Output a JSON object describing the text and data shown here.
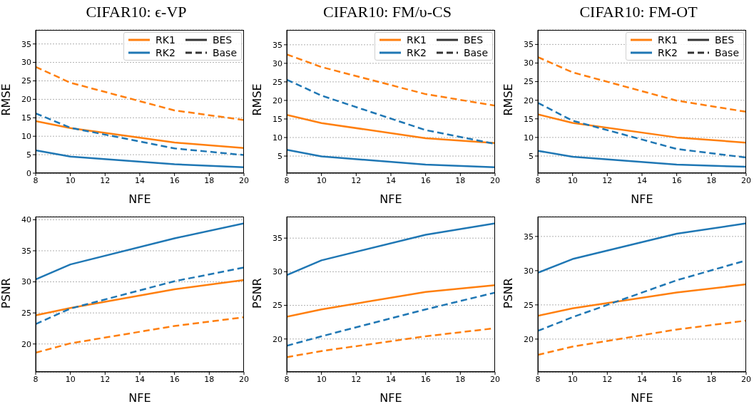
{
  "chart_data": [
    {
      "type": "line",
      "title": "CIFAR10: ϵ-VP",
      "xlabel": "NFE",
      "ylabel": "RMSE",
      "x": [
        8,
        10,
        16,
        20
      ],
      "xlim": [
        8,
        20
      ],
      "xticks": [
        8,
        10,
        12,
        14,
        16,
        18,
        20
      ],
      "ylim": [
        0,
        38.8
      ],
      "yticks": [
        0,
        5,
        10,
        15,
        20,
        25,
        30,
        35
      ],
      "grid": "y",
      "legend": "top right",
      "series": [
        {
          "name": "RK1",
          "color": "#ff7f0e",
          "line_style": "solid",
          "values": [
            14.1,
            12.2,
            8.3,
            6.8
          ]
        },
        {
          "name": "RK2",
          "color": "#1f77b4",
          "line_style": "solid",
          "values": [
            6.2,
            4.5,
            2.4,
            1.6
          ]
        },
        {
          "color": "#ff7f0e",
          "line_style": "dashed",
          "values": [
            28.8,
            24.5,
            17.0,
            14.4
          ]
        },
        {
          "color": "#1f77b4",
          "line_style": "dashed",
          "values": [
            16.2,
            12.3,
            6.7,
            4.9
          ]
        },
        {
          "name": "BES",
          "color": "#333333",
          "line_style": "solid",
          "values": [
            null,
            null,
            null,
            null
          ]
        },
        {
          "name": "Base",
          "color": "#333333",
          "line_style": "dashed",
          "values": [
            null,
            null,
            null,
            null
          ]
        }
      ]
    },
    {
      "type": "line",
      "title": "CIFAR10: FM/υ-CS",
      "xlabel": "NFE",
      "ylabel": "RMSE",
      "x": [
        8,
        10,
        16,
        20
      ],
      "xlim": [
        8,
        20
      ],
      "xticks": [
        8,
        10,
        12,
        14,
        16,
        18,
        20
      ],
      "ylim": [
        0.4,
        39
      ],
      "yticks": [
        5,
        10,
        15,
        20,
        25,
        30,
        35
      ],
      "grid": "y",
      "legend": "top right",
      "series": [
        {
          "name": "RK1",
          "color": "#ff7f0e",
          "line_style": "solid",
          "values": [
            16.1,
            13.9,
            9.8,
            8.5
          ]
        },
        {
          "name": "RK2",
          "color": "#1f77b4",
          "line_style": "solid",
          "values": [
            6.7,
            4.9,
            2.7,
            2.0
          ]
        },
        {
          "color": "#ff7f0e",
          "line_style": "dashed",
          "values": [
            32.4,
            29.0,
            21.7,
            18.6
          ]
        },
        {
          "color": "#1f77b4",
          "line_style": "dashed",
          "values": [
            25.6,
            21.3,
            12.0,
            8.3
          ]
        },
        {
          "name": "BES",
          "color": "#333333",
          "line_style": "solid",
          "values": [
            null,
            null,
            null,
            null
          ]
        },
        {
          "name": "Base",
          "color": "#333333",
          "line_style": "dashed",
          "values": [
            null,
            null,
            null,
            null
          ]
        }
      ]
    },
    {
      "type": "line",
      "title": "CIFAR10: FM-OT",
      "xlabel": "NFE",
      "ylabel": "RMSE",
      "x": [
        8,
        10,
        16,
        20
      ],
      "xlim": [
        8,
        20
      ],
      "xticks": [
        8,
        10,
        12,
        14,
        16,
        18,
        20
      ],
      "ylim": [
        0.4,
        38.9
      ],
      "yticks": [
        5,
        10,
        15,
        20,
        25,
        30,
        35
      ],
      "grid": "y",
      "legend": "top right",
      "series": [
        {
          "name": "RK1",
          "color": "#ff7f0e",
          "line_style": "solid",
          "values": [
            16.2,
            13.9,
            10.0,
            8.6
          ]
        },
        {
          "name": "RK2",
          "color": "#1f77b4",
          "line_style": "solid",
          "values": [
            6.4,
            4.8,
            2.7,
            2.1
          ]
        },
        {
          "color": "#ff7f0e",
          "line_style": "dashed",
          "values": [
            31.6,
            27.5,
            19.9,
            16.9
          ]
        },
        {
          "color": "#1f77b4",
          "line_style": "dashed",
          "values": [
            19.3,
            14.5,
            6.9,
            4.6
          ]
        },
        {
          "name": "BES",
          "color": "#333333",
          "line_style": "solid",
          "values": [
            null,
            null,
            null,
            null
          ]
        },
        {
          "name": "Base",
          "color": "#333333",
          "line_style": "dashed",
          "values": [
            null,
            null,
            null,
            null
          ]
        }
      ]
    },
    {
      "type": "line",
      "xlabel": "NFE",
      "ylabel": "PSNR",
      "x": [
        8,
        10,
        16,
        20
      ],
      "xlim": [
        8,
        20
      ],
      "xticks": [
        8,
        10,
        12,
        14,
        16,
        18,
        20
      ],
      "ylim": [
        15.5,
        40.5
      ],
      "yticks": [
        20,
        25,
        30,
        35,
        40
      ],
      "grid": "y",
      "series": [
        {
          "color": "#ff7f0e",
          "line_style": "solid",
          "values": [
            24.6,
            25.8,
            28.8,
            30.3
          ]
        },
        {
          "color": "#1f77b4",
          "line_style": "solid",
          "values": [
            30.4,
            32.8,
            37.0,
            39.4
          ]
        },
        {
          "color": "#ff7f0e",
          "line_style": "dashed",
          "values": [
            18.6,
            20.1,
            22.9,
            24.3
          ]
        },
        {
          "color": "#1f77b4",
          "line_style": "dashed",
          "values": [
            23.2,
            25.7,
            30.1,
            32.3
          ]
        }
      ]
    },
    {
      "type": "line",
      "xlabel": "NFE",
      "ylabel": "PSNR",
      "x": [
        8,
        10,
        16,
        20
      ],
      "xlim": [
        8,
        20
      ],
      "xticks": [
        8,
        10,
        12,
        14,
        16,
        18,
        20
      ],
      "ylim": [
        15.1,
        38.2
      ],
      "yticks": [
        20,
        25,
        30,
        35
      ],
      "grid": "y",
      "series": [
        {
          "color": "#ff7f0e",
          "line_style": "solid",
          "values": [
            23.3,
            24.4,
            27.0,
            28.0
          ]
        },
        {
          "color": "#1f77b4",
          "line_style": "solid",
          "values": [
            29.5,
            31.7,
            35.5,
            37.2
          ]
        },
        {
          "color": "#ff7f0e",
          "line_style": "dashed",
          "values": [
            17.3,
            18.2,
            20.4,
            21.6
          ]
        },
        {
          "color": "#1f77b4",
          "line_style": "dashed",
          "values": [
            19.0,
            20.4,
            24.4,
            26.9
          ]
        }
      ]
    },
    {
      "type": "line",
      "xlabel": "NFE",
      "ylabel": "PSNR",
      "x": [
        8,
        10,
        16,
        20
      ],
      "xlim": [
        8,
        20
      ],
      "xticks": [
        8,
        10,
        12,
        14,
        16,
        18,
        20
      ],
      "ylim": [
        15.2,
        37.9
      ],
      "yticks": [
        20,
        25,
        30,
        35
      ],
      "grid": "y",
      "series": [
        {
          "color": "#ff7f0e",
          "line_style": "solid",
          "values": [
            23.4,
            24.5,
            26.8,
            28.0
          ]
        },
        {
          "color": "#1f77b4",
          "line_style": "solid",
          "values": [
            29.7,
            31.7,
            35.4,
            36.9
          ]
        },
        {
          "color": "#ff7f0e",
          "line_style": "dashed",
          "values": [
            17.7,
            18.9,
            21.4,
            22.7
          ]
        },
        {
          "color": "#1f77b4",
          "line_style": "dashed",
          "values": [
            21.2,
            23.2,
            28.6,
            31.5
          ]
        }
      ]
    }
  ]
}
